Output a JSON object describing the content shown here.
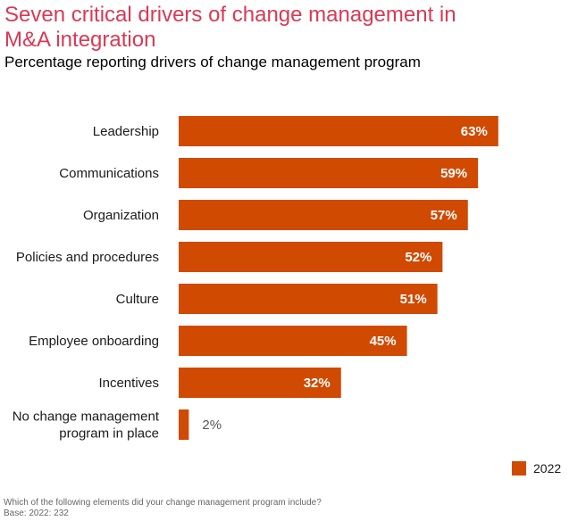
{
  "header": {
    "title": "Seven critical drivers of change management in M&A integration",
    "subtitle": "Percentage reporting drivers of change management program"
  },
  "colors": {
    "title": "#d93954",
    "bar": "#d04a02",
    "label_inside": "#ffffff",
    "label_outside": "#555555"
  },
  "chart_data": {
    "type": "bar",
    "orientation": "horizontal",
    "title": "Seven critical drivers of change management in M&A integration",
    "subtitle": "Percentage reporting drivers of change management program",
    "xlabel": "",
    "ylabel": "",
    "xlim": [
      0,
      100
    ],
    "grid": false,
    "legend_position": "bottom-right",
    "categories": [
      [
        "Leadership"
      ],
      [
        "Communications"
      ],
      [
        "Organization"
      ],
      [
        "Policies and procedures"
      ],
      [
        "Culture"
      ],
      [
        "Employee onboarding"
      ],
      [
        "Incentives"
      ],
      [
        "No change management",
        "program in place"
      ]
    ],
    "series": [
      {
        "name": "2022",
        "values": [
          63,
          59,
          57,
          52,
          51,
          45,
          32,
          2
        ]
      }
    ],
    "value_labels": [
      "63%",
      "59%",
      "57%",
      "52%",
      "51%",
      "45%",
      "32%",
      "2%"
    ]
  },
  "legend": {
    "items": [
      {
        "label": "2022"
      }
    ]
  },
  "footnote": {
    "question": "Which of the following elements did your change management program include?",
    "base": "Base: 2022: 232"
  }
}
